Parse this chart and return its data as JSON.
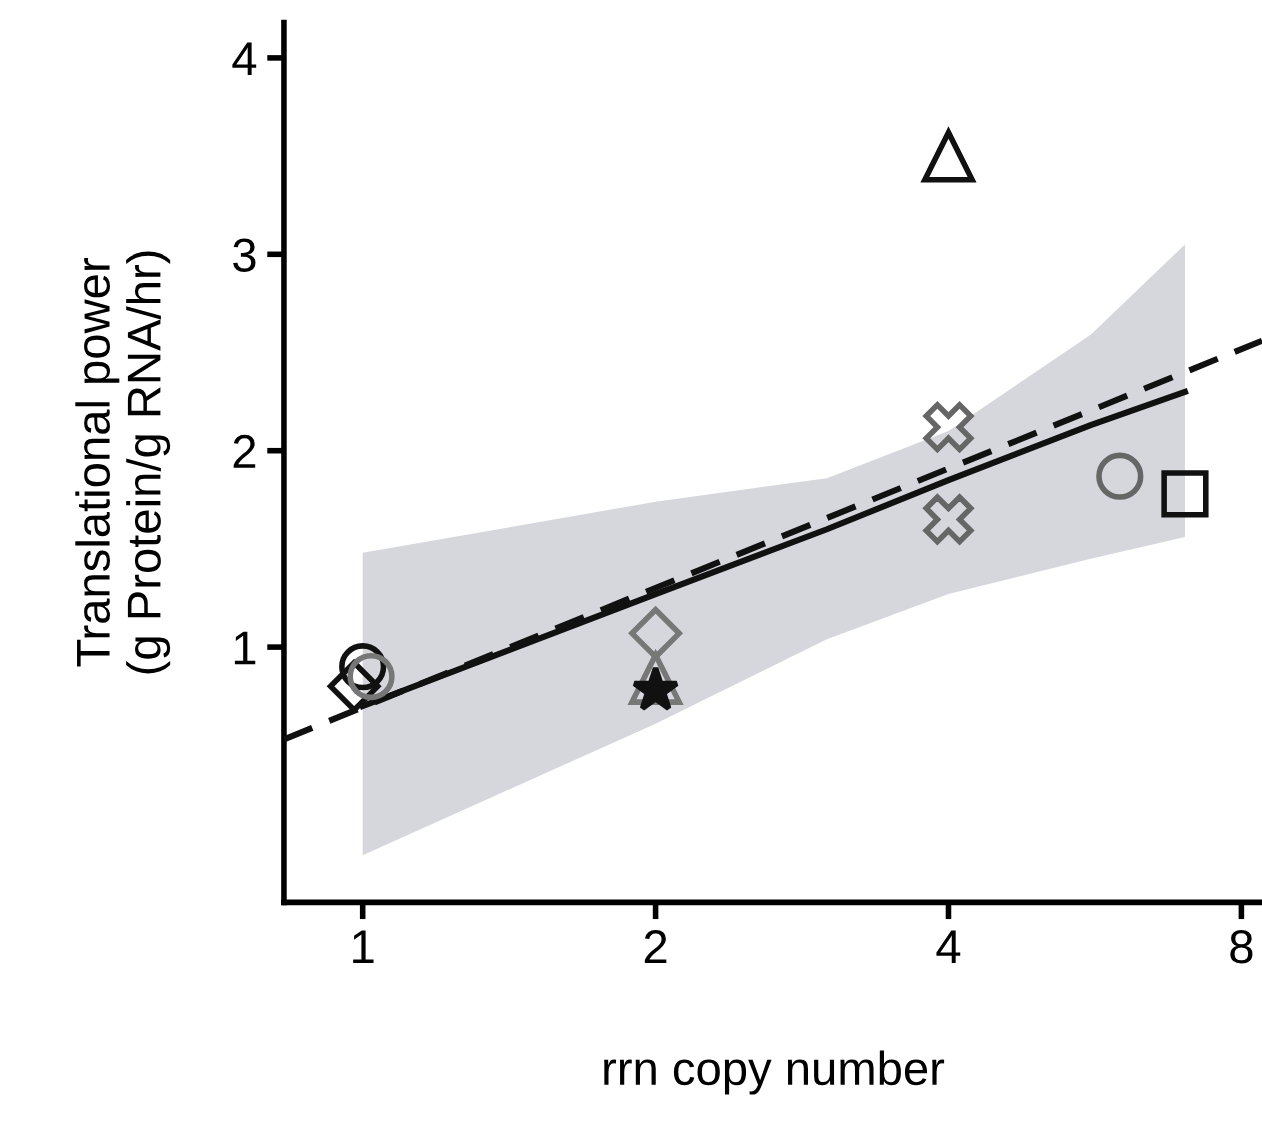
{
  "chart_data": {
    "type": "scatter",
    "xlabel": "rrn copy number",
    "ylabel": "Translational power\n(g Protein/g RNA/hr)",
    "log": "x",
    "xlim": [
      0.83,
      8.4
    ],
    "ylim": [
      -0.3,
      4.18
    ],
    "xticks": [
      1,
      2,
      4,
      8
    ],
    "yticks": [
      1,
      2,
      3,
      4
    ],
    "grid": false,
    "legend": false,
    "series": [
      {
        "type": "line",
        "color": "#111111",
        "line_style": "solid",
        "x": [
          1,
          2,
          3,
          4,
          5.6,
          7
        ],
        "values": [
          0.7,
          1.27,
          1.6,
          1.85,
          2.13,
          2.3
        ],
        "lower": [
          -0.06,
          0.61,
          1.04,
          1.27,
          1.45,
          1.56
        ],
        "upper": [
          1.48,
          1.74,
          1.86,
          2.1,
          2.59,
          3.05
        ]
      },
      {
        "type": "line",
        "color": "#111111",
        "line_style": "dashed",
        "x": [
          0.83,
          8.4
        ],
        "values": [
          0.53,
          2.56
        ]
      },
      {
        "color": "#111111",
        "marker": "circle",
        "x": [
          1
        ],
        "values": [
          0.9
        ]
      },
      {
        "color": "#111111",
        "marker": "diamond",
        "x": [
          0.98
        ],
        "values": [
          0.8
        ]
      },
      {
        "color": "#777777",
        "marker": "circle",
        "x": [
          1.02
        ],
        "values": [
          0.85
        ]
      },
      {
        "color": "#777777",
        "marker": "diamond",
        "x": [
          2
        ],
        "values": [
          1.07
        ]
      },
      {
        "color": "#777777",
        "marker": "triangle",
        "x": [
          2
        ],
        "values": [
          0.84
        ]
      },
      {
        "color": "#111111",
        "marker": "star",
        "x": [
          2
        ],
        "values": [
          0.78
        ]
      },
      {
        "color": "#111111",
        "marker": "triangle",
        "x": [
          4
        ],
        "values": [
          3.5
        ]
      },
      {
        "color": "#666666",
        "marker": "cross",
        "x": [
          4
        ],
        "values": [
          2.12
        ]
      },
      {
        "color": "#666666",
        "marker": "cross",
        "x": [
          4
        ],
        "values": [
          1.65
        ]
      },
      {
        "color": "#666666",
        "marker": "circle",
        "x": [
          6.0
        ],
        "values": [
          1.87
        ]
      },
      {
        "color": "#111111",
        "marker": "square",
        "x": [
          7.0
        ],
        "values": [
          1.78
        ]
      }
    ]
  }
}
